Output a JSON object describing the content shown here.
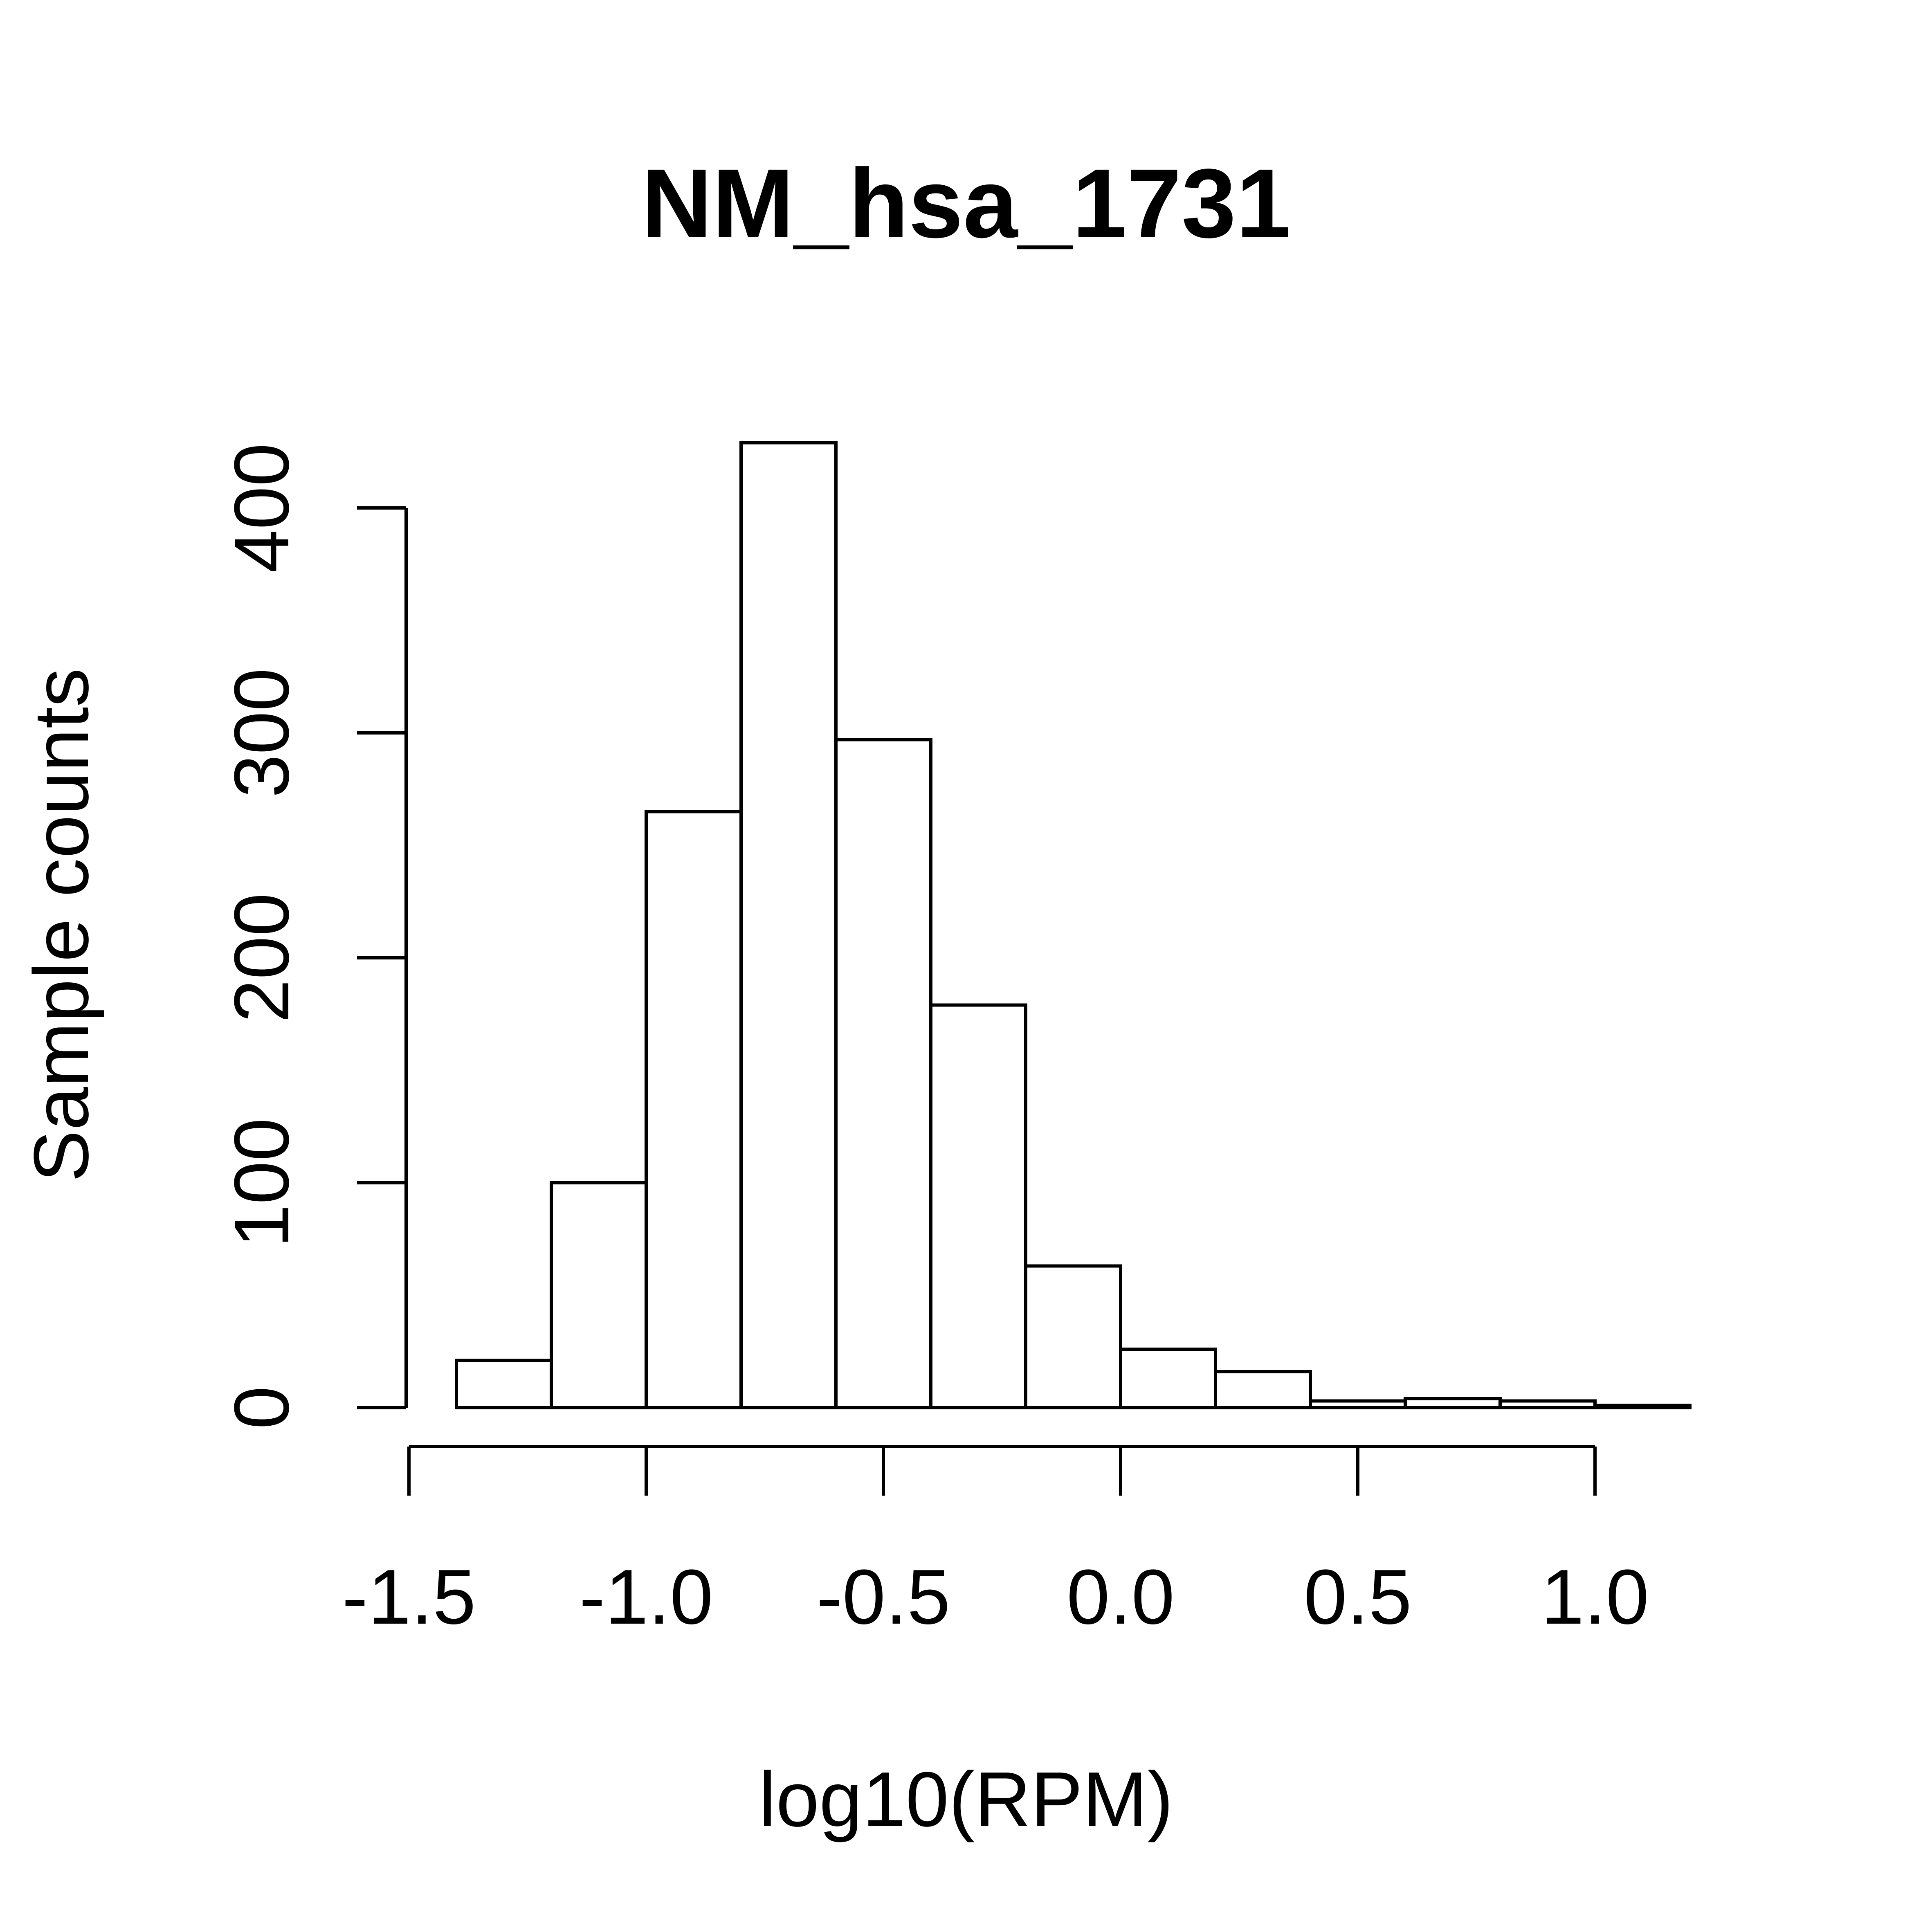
{
  "chart_data": {
    "type": "bar",
    "title": "NM_hsa_1731",
    "xlabel": "log10(RPM)",
    "ylabel": "Sample counts",
    "bins": [
      {
        "x0": -1.4,
        "x1": -1.2,
        "count": 21
      },
      {
        "x0": -1.2,
        "x1": -1.0,
        "count": 100
      },
      {
        "x0": -1.0,
        "x1": -0.8,
        "count": 265
      },
      {
        "x0": -0.8,
        "x1": -0.6,
        "count": 429
      },
      {
        "x0": -0.6,
        "x1": -0.4,
        "count": 297
      },
      {
        "x0": -0.4,
        "x1": -0.2,
        "count": 179
      },
      {
        "x0": -0.2,
        "x1": 0.0,
        "count": 63
      },
      {
        "x0": 0.0,
        "x1": 0.2,
        "count": 26
      },
      {
        "x0": 0.2,
        "x1": 0.4,
        "count": 16
      },
      {
        "x0": 0.4,
        "x1": 0.6,
        "count": 3
      },
      {
        "x0": 0.6,
        "x1": 0.8,
        "count": 4
      },
      {
        "x0": 0.8,
        "x1": 1.0,
        "count": 3
      },
      {
        "x0": 1.0,
        "x1": 1.2,
        "count": 1
      }
    ],
    "xlim": [
      -1.5,
      1.0
    ],
    "ylim": [
      0,
      400
    ],
    "x_ticks": [
      -1.5,
      -1.0,
      -0.5,
      0.0,
      0.5,
      1.0
    ],
    "x_tick_labels": [
      "-1.5",
      "-1.0",
      "-0.5",
      "0.0",
      "0.5",
      "1.0"
    ],
    "y_ticks": [
      0,
      100,
      200,
      300,
      400
    ],
    "y_tick_labels": [
      "0",
      "100",
      "200",
      "300",
      "400"
    ],
    "grid": false,
    "legend": "none",
    "colors": {
      "bar_fill": "#ffffff",
      "bar_stroke": "#000000"
    }
  }
}
